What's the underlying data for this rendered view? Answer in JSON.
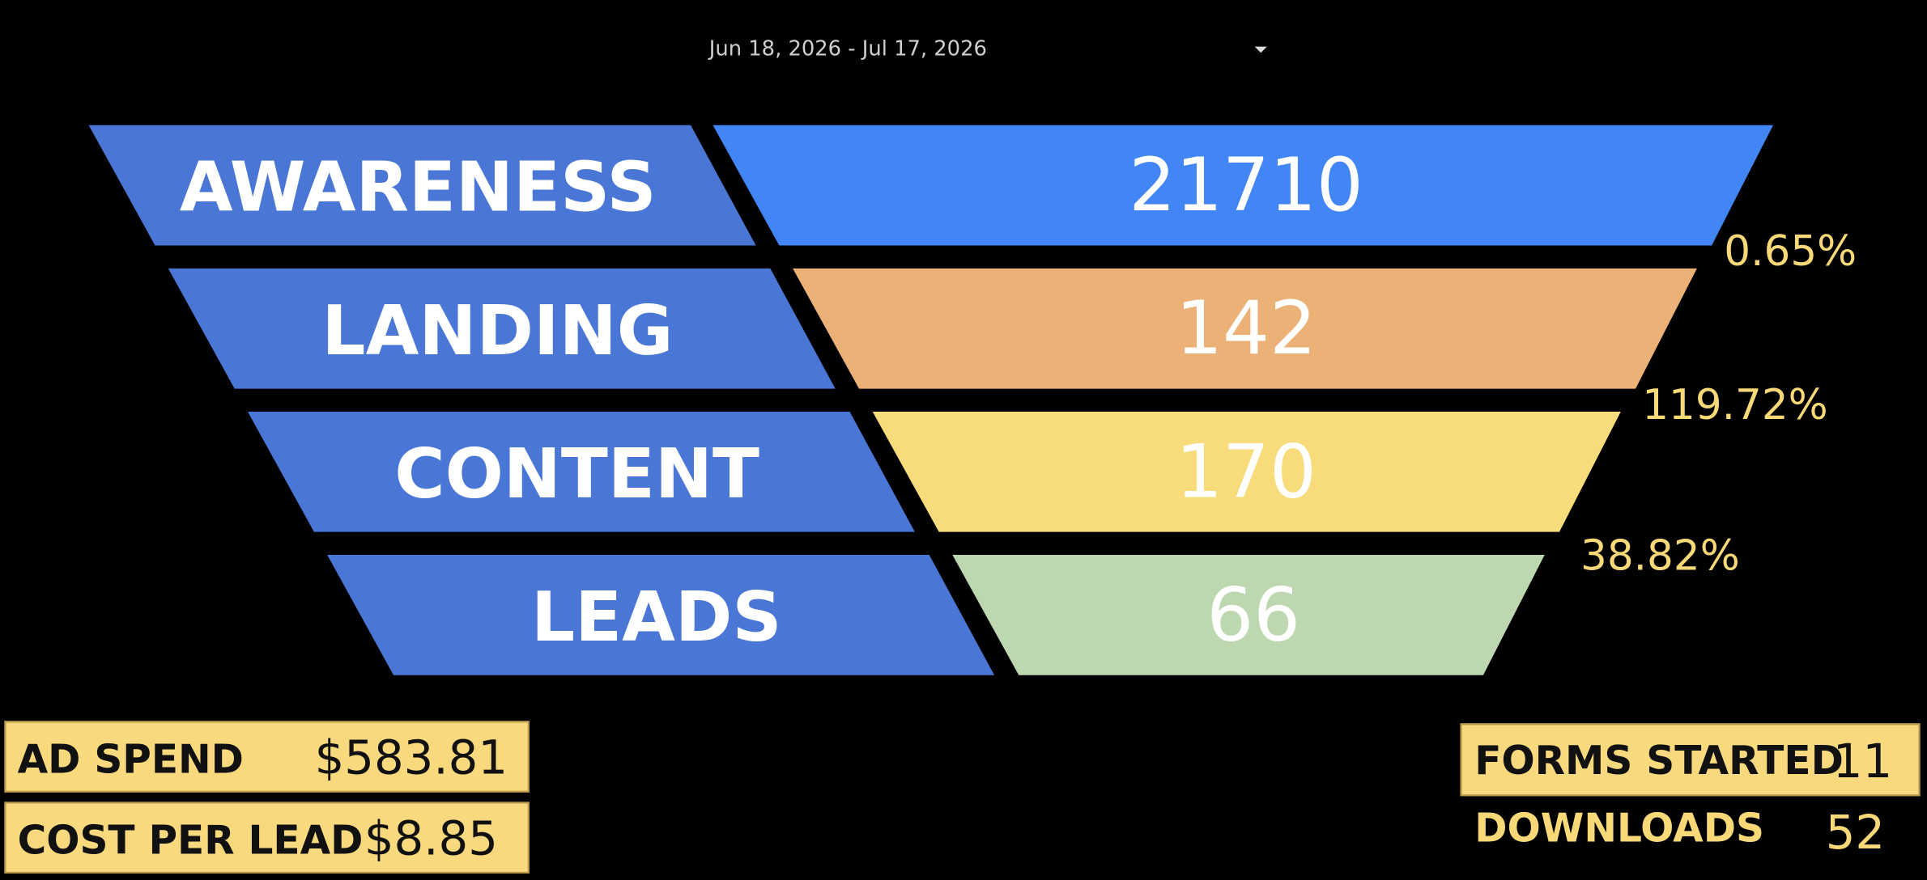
{
  "date_range": "Jun 18, 2026 - Jul 17, 2026",
  "funnel": {
    "stages": [
      {
        "label": "AWARENESS",
        "value": 21710,
        "color": "#4285f4"
      },
      {
        "label": "LANDING",
        "value": 142,
        "color": "#ebb176"
      },
      {
        "label": "CONTENT",
        "value": 170,
        "color": "#f8dc7b"
      },
      {
        "label": "LEADS",
        "value": 66,
        "color": "#bdd7b1"
      }
    ],
    "label_color": "#4a77d5",
    "conversion_rates": [
      "0.65%",
      "119.72%",
      "38.82%"
    ]
  },
  "metrics_left": [
    {
      "label": "AD SPEND",
      "value": "$583.81"
    },
    {
      "label": "COST PER LEAD",
      "value": "$8.85"
    }
  ],
  "metrics_right": [
    {
      "label": "FORMS STARTED",
      "value": "11"
    },
    {
      "label": "DOWNLOADS",
      "value": "52"
    }
  ]
}
